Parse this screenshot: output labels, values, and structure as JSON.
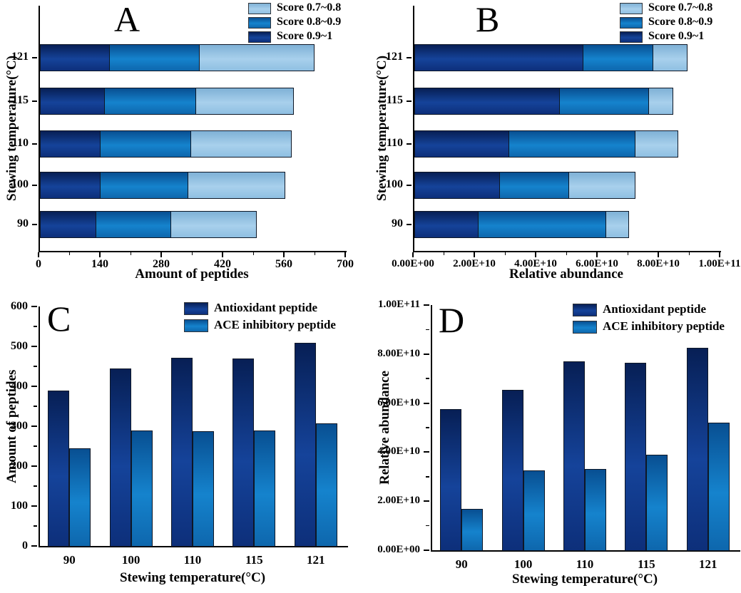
{
  "palette": {
    "dark": [
      "#071f55",
      "#15439a",
      "#0d2f7a"
    ],
    "mid": [
      "#084f92",
      "#1583cd",
      "#0e67ad"
    ],
    "light": [
      "#7fb1d6",
      "#a8d0ec",
      "#8fc0e2"
    ],
    "bar_border": "#0e1726",
    "axis": "#000000",
    "text": "#000000"
  },
  "chart_data": [
    {
      "id": "A",
      "letter": "A",
      "type": "bar",
      "variant": "horizontal-stacked",
      "xlabel": "Amount of peptides",
      "ylabel": "Stewing temperature(°C)",
      "categories": [
        "90",
        "100",
        "110",
        "115",
        "121"
      ],
      "series": [
        {
          "name": "Score 0.9~1",
          "color": "dark",
          "values": [
            128,
            138,
            138,
            148,
            160
          ]
        },
        {
          "name": "Score 0.8~0.9",
          "color": "mid",
          "values": [
            172,
            201,
            207,
            208,
            204
          ]
        },
        {
          "name": "Score 0.7~0.8",
          "color": "light",
          "values": [
            195,
            221,
            230,
            224,
            263
          ]
        }
      ],
      "x_axis": {
        "min": 0,
        "max": 700,
        "tick_labels": [
          "0",
          "140",
          "280",
          "420",
          "560",
          "700"
        ]
      },
      "legend": [
        "Score 0.7~0.8",
        "Score 0.8~0.9",
        "Score 0.9~1"
      ],
      "legend_position": "top-right"
    },
    {
      "id": "B",
      "letter": "B",
      "type": "bar",
      "variant": "horizontal-stacked",
      "xlabel": "Relative abundance",
      "ylabel": "Stewing temperature(°C)",
      "categories": [
        "90",
        "100",
        "110",
        "115",
        "121"
      ],
      "series": [
        {
          "name": "Score 0.9~1",
          "color": "dark",
          "values": [
            21000000000.0,
            28000000000.0,
            31000000000.0,
            47500000000.0,
            55000000000.0
          ]
        },
        {
          "name": "Score 0.8~0.9",
          "color": "mid",
          "values": [
            41500000000.0,
            22500000000.0,
            41000000000.0,
            29000000000.0,
            23000000000.0
          ]
        },
        {
          "name": "Score 0.7~0.8",
          "color": "light",
          "values": [
            7500000000.0,
            21500000000.0,
            14000000000.0,
            8000000000.0,
            11000000000.0
          ]
        }
      ],
      "x_axis": {
        "min": 0,
        "max": 100000000000.0,
        "tick_labels": [
          "0.00E+00",
          "2.00E+10",
          "4.00E+10",
          "6.00E+10",
          "8.00E+10",
          "1.00E+11"
        ]
      },
      "legend": [
        "Score 0.7~0.8",
        "Score 0.8~0.9",
        "Score 0.9~1"
      ],
      "legend_position": "top-right"
    },
    {
      "id": "C",
      "letter": "C",
      "type": "bar",
      "variant": "vertical-grouped",
      "xlabel": "Stewing temperature(°C)",
      "ylabel": "Amount of peptides",
      "categories": [
        "90",
        "100",
        "110",
        "115",
        "121"
      ],
      "series": [
        {
          "name": "Antioxidant peptide",
          "color": "dark",
          "values": [
            390,
            445,
            472,
            470,
            509
          ]
        },
        {
          "name": "ACE inhibitory peptide",
          "color": "mid",
          "values": [
            245,
            290,
            288,
            290,
            308
          ]
        }
      ],
      "y_axis": {
        "min": 0,
        "max": 600,
        "tick_labels": [
          "0",
          "100",
          "200",
          "300",
          "400",
          "500",
          "600"
        ]
      },
      "legend": [
        "Antioxidant peptide",
        "ACE inhibitory peptide"
      ],
      "legend_position": "top-right"
    },
    {
      "id": "D",
      "letter": "D",
      "type": "bar",
      "variant": "vertical-grouped",
      "xlabel": "Stewing temperature(°C)",
      "ylabel": "Relative abundance",
      "categories": [
        "90",
        "100",
        "110",
        "115",
        "121"
      ],
      "series": [
        {
          "name": "Antioxidant peptide",
          "color": "dark",
          "values": [
            57500000000.0,
            65500000000.0,
            77000000000.0,
            76500000000.0,
            82500000000.0
          ]
        },
        {
          "name": "ACE inhibitory peptide",
          "color": "mid",
          "values": [
            17000000000.0,
            32500000000.0,
            33000000000.0,
            39000000000.0,
            52000000000.0
          ]
        }
      ],
      "y_axis": {
        "min": 0,
        "max": 100000000000.0,
        "tick_labels": [
          "0.00E+00",
          "2.00E+10",
          "4.00E+10",
          "6.00E+10",
          "8.00E+10",
          "1.00E+11"
        ]
      },
      "legend": [
        "Antioxidant peptide",
        "ACE inhibitory peptide"
      ],
      "legend_position": "top-right"
    }
  ]
}
